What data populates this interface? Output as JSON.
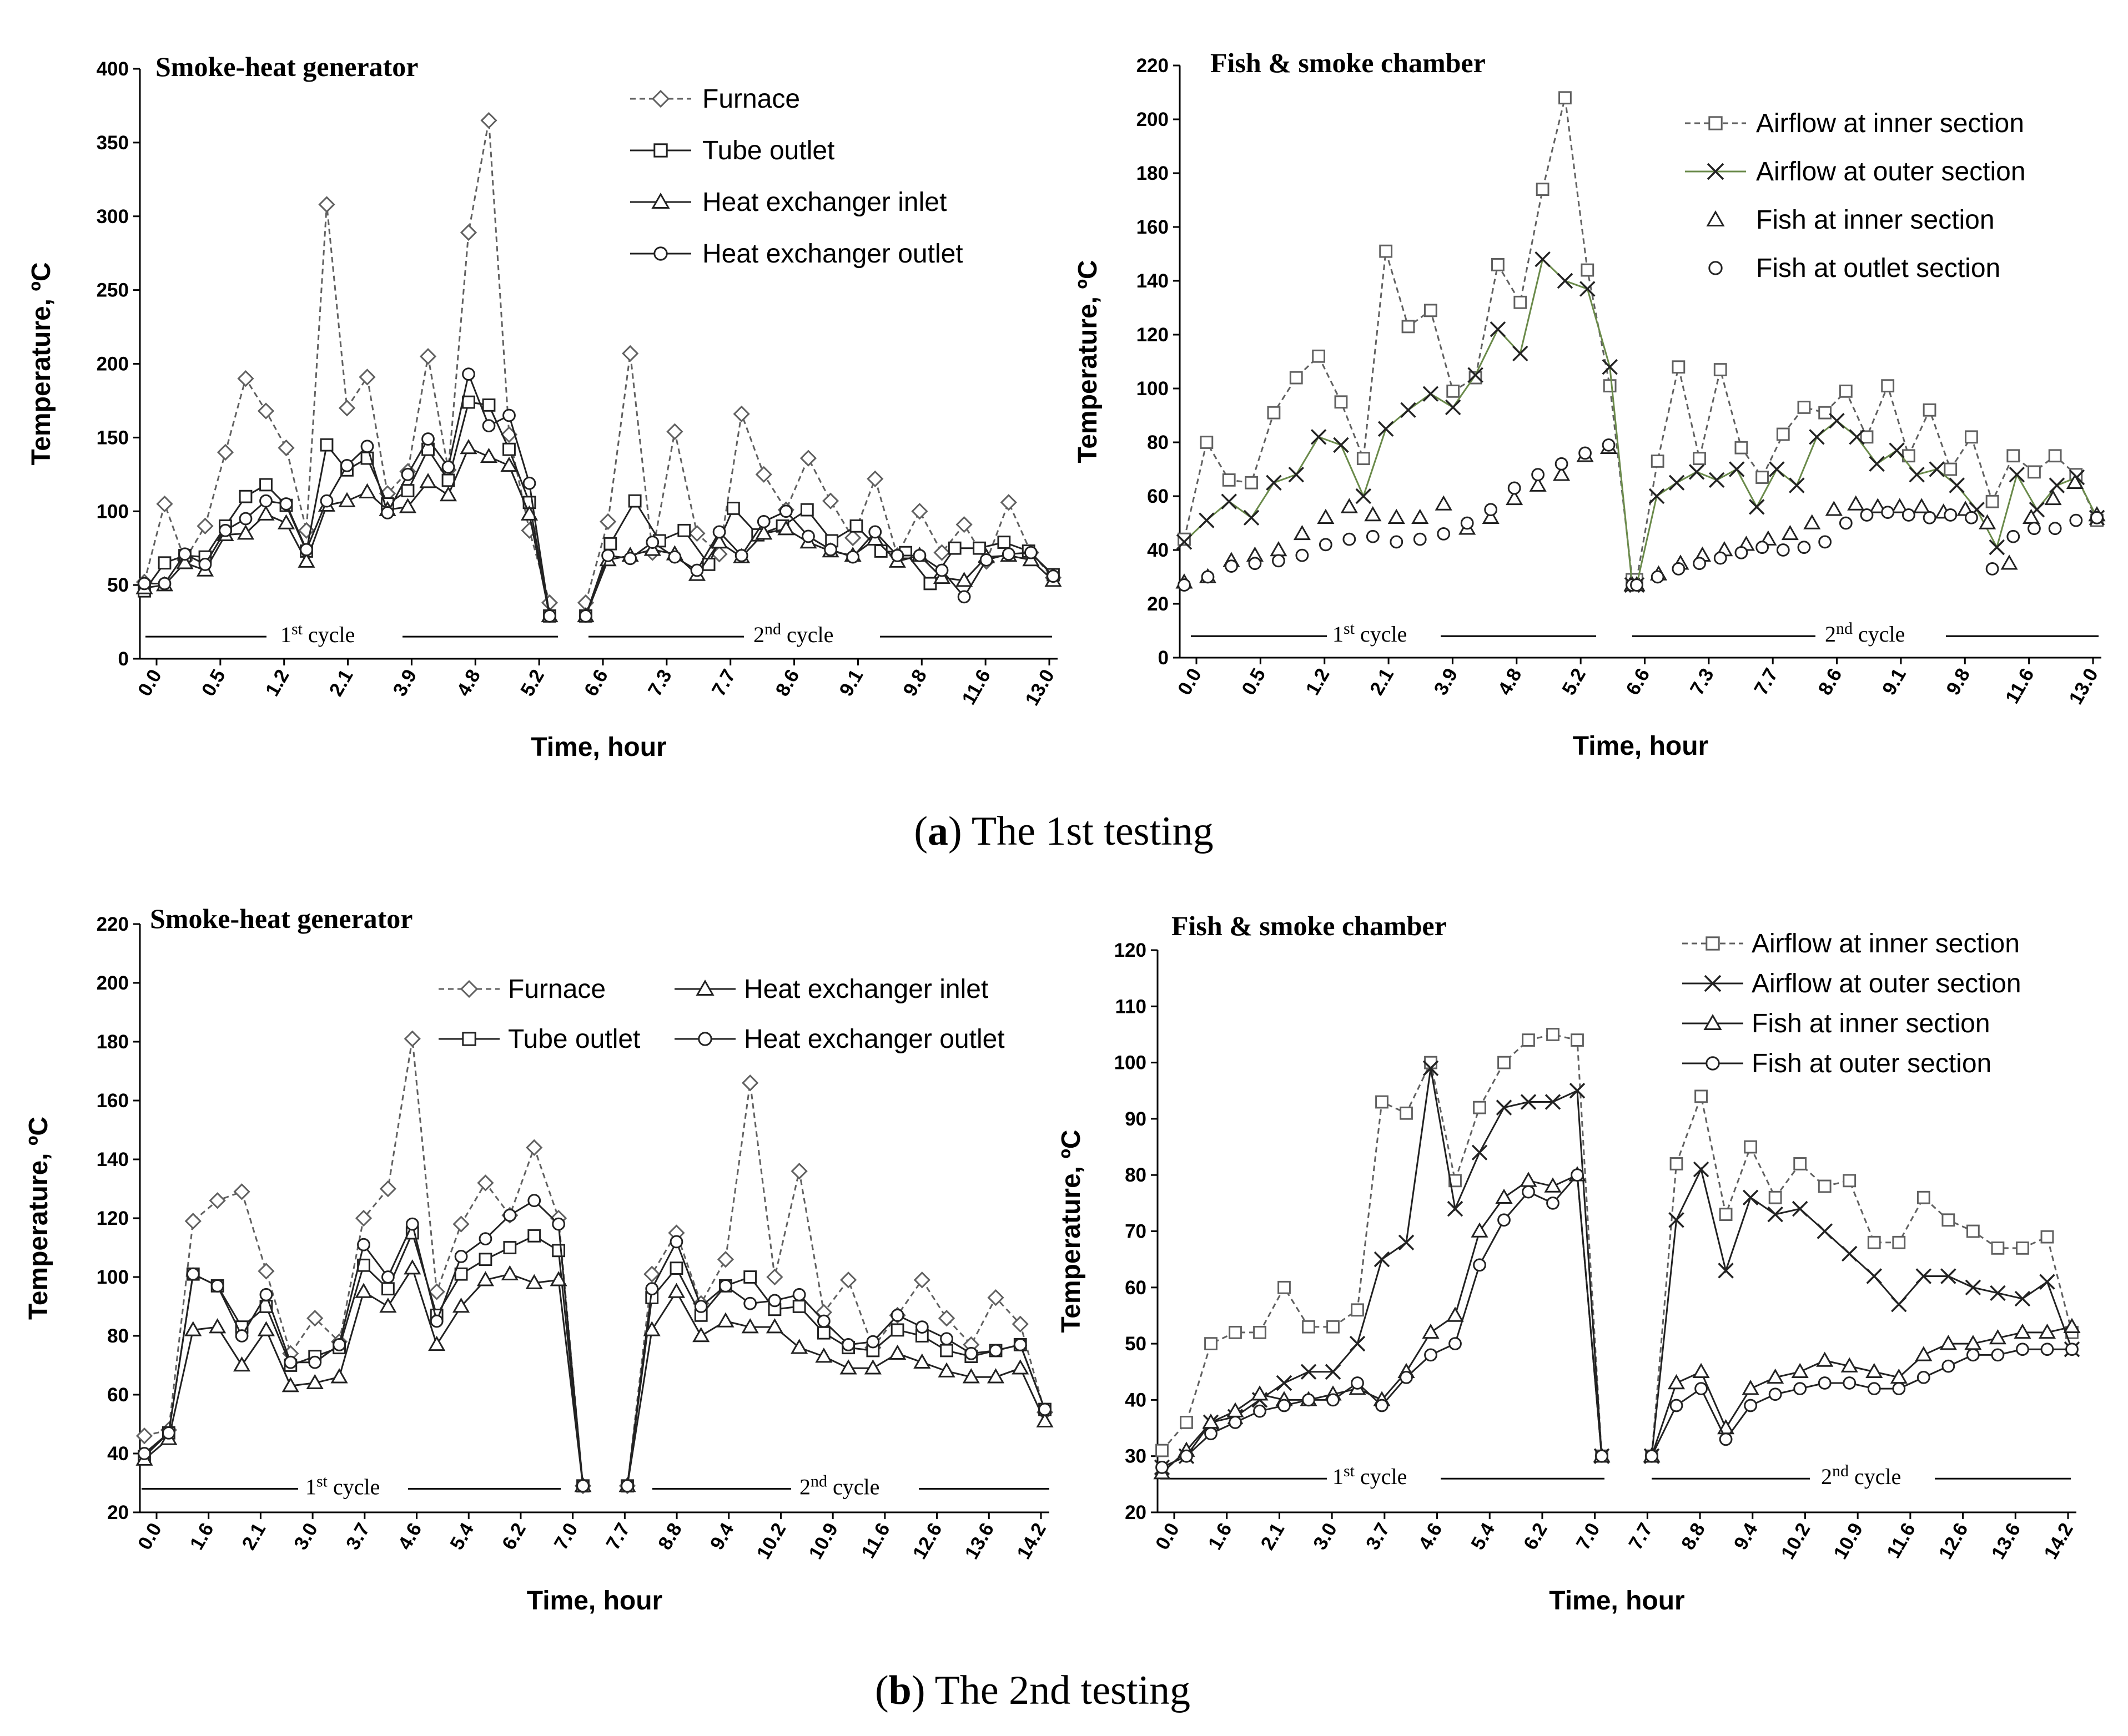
{
  "captions": [
    {
      "letter": "a",
      "open": "(",
      "close": ")",
      "text": " The 1st testing"
    },
    {
      "letter": "b",
      "open": "(",
      "close": ")",
      "text": " The 2nd testing"
    }
  ],
  "colors": {
    "marker": "#606060",
    "line": "#222222",
    "green": "#6a8a4a",
    "axis": "#000000"
  },
  "chart_data": [
    {
      "type": "line",
      "id": "a-left",
      "title": "Smoke-heat generator",
      "xlabel": "Time, hour",
      "ylabel": "Temperature, ºC",
      "ylim": [
        0,
        400
      ],
      "ytick_step": 50,
      "n_points": 54,
      "x_tick_labels": [
        "0.0",
        "0.5",
        "1.2",
        "2.1",
        "3.9",
        "4.8",
        "5.2",
        "6.6",
        "7.3",
        "7.7",
        "8.6",
        "9.1",
        "9.8",
        "11.6",
        "13.0"
      ],
      "x_tick_index": [
        0,
        2,
        4,
        6,
        8,
        10,
        12,
        14,
        16,
        18,
        20,
        22,
        24,
        26,
        28
      ],
      "cycles": [
        {
          "label": "1",
          "sup": "st",
          "suffix": " cycle"
        },
        {
          "label": "2",
          "sup": "nd",
          "suffix": " cycle"
        }
      ],
      "cycle_y": 15,
      "series": [
        {
          "name": "Furnace",
          "marker": "diamond",
          "dash": true,
          "segments": [
            [
              52,
              105,
              67,
              90,
              140,
              190,
              168,
              143,
              87,
              308,
              170,
              191,
              112,
              127,
              205,
              128,
              289,
              365,
              152,
              87,
              38
            ],
            [
              38,
              93,
              207,
              72,
              154,
              85,
              71,
              166,
              125,
              101,
              136,
              107,
              82,
              122,
              70,
              100,
              72,
              91,
              66,
              106,
              72,
              55
            ]
          ]
        },
        {
          "name": "Tube outlet",
          "marker": "square",
          "dash": false,
          "segments": [
            [
              46,
              65,
              70,
              69,
              90,
              110,
              118,
              104,
              73,
              145,
              128,
              136,
              105,
              114,
              142,
              121,
              174,
              172,
              142,
              106,
              29
            ],
            [
              29,
              78,
              107,
              80,
              87,
              64,
              102,
              84,
              90,
              101,
              80,
              90,
              73,
              72,
              51,
              75,
              75,
              79,
              73,
              57
            ]
          ]
        },
        {
          "name": "Heat exchanger inlet",
          "marker": "triangle",
          "dash": false,
          "segments": [
            [
              48,
              50,
              65,
              60,
              84,
              85,
              98,
              92,
              66,
              104,
              107,
              113,
              101,
              103,
              120,
              111,
              143,
              137,
              131,
              98,
              29
            ],
            [
              29,
              67,
              70,
              74,
              71,
              57,
              79,
              69,
              85,
              88,
              79,
              73,
              70,
              81,
              66,
              70,
              55,
              53,
              69,
              70,
              67,
              53
            ]
          ]
        },
        {
          "name": "Heat exchanger outlet",
          "marker": "circle",
          "dash": false,
          "segments": [
            [
              51,
              51,
              71,
              64,
              87,
              95,
              107,
              105,
              74,
              107,
              131,
              144,
              99,
              125,
              149,
              130,
              193,
              158,
              165,
              119,
              29
            ],
            [
              29,
              70,
              68,
              79,
              69,
              60,
              86,
              70,
              93,
              100,
              83,
              74,
              69,
              86,
              70,
              70,
              60,
              42,
              67,
              71,
              72,
              56
            ]
          ]
        }
      ]
    },
    {
      "type": "line",
      "id": "a-right",
      "title": "Fish & smoke chamber",
      "xlabel": "Time,  hour",
      "ylabel": "Temperature, ºC",
      "ylim": [
        0,
        220
      ],
      "ytick_step": 20,
      "n_points": 66,
      "x_tick_labels": [
        "0.0",
        "0.5",
        "1.2",
        "2.1",
        "3.9",
        "4.8",
        "5.2",
        "6.6",
        "7.3",
        "7.7",
        "8.6",
        "9.1",
        "9.8",
        "11.6",
        "13.0"
      ],
      "x_tick_index": [
        0,
        3,
        6,
        9,
        12,
        15,
        18,
        23,
        26,
        29,
        32,
        35,
        38,
        41,
        44
      ],
      "cycles": [
        {
          "label": "1",
          "sup": "st",
          "suffix": " cycle"
        },
        {
          "label": "2",
          "sup": "nd",
          "suffix": " cycle"
        }
      ],
      "cycle_y": 8,
      "series": [
        {
          "name": "Airflow at inner section",
          "marker": "square",
          "dash": true,
          "segments": [
            [
              44,
              80,
              66,
              65,
              91,
              104,
              112,
              95,
              74,
              151,
              123,
              129,
              99,
              104,
              146,
              132,
              174,
              208,
              144,
              101,
              29
            ],
            [
              29,
              73,
              108,
              74,
              107,
              78,
              67,
              83,
              93,
              91,
              99,
              82,
              101,
              75,
              92,
              70,
              82,
              58,
              75,
              69,
              75,
              68,
              51
            ]
          ]
        },
        {
          "name": "Airflow at outer section",
          "marker": "cross",
          "dash": false,
          "color": "green",
          "segments": [
            [
              43,
              51,
              58,
              52,
              65,
              68,
              82,
              79,
              60,
              85,
              92,
              98,
              93,
              105,
              122,
              113,
              148,
              140,
              137,
              108,
              27
            ],
            [
              27,
              60,
              65,
              69,
              66,
              70,
              56,
              70,
              64,
              82,
              88,
              82,
              72,
              77,
              68,
              70,
              64,
              55,
              41,
              68,
              55,
              64,
              67,
              52
            ]
          ]
        },
        {
          "name": "Fish at inner section",
          "marker": "triangle",
          "dash": false,
          "show_line": false,
          "segments": [
            [
              28,
              30,
              36,
              38,
              40,
              46,
              52,
              56,
              53,
              52,
              52,
              57,
              48,
              52,
              59,
              64,
              68,
              75,
              78,
              27
            ],
            [
              27,
              31,
              35,
              38,
              40,
              42,
              44,
              46,
              50,
              55,
              57,
              56,
              56,
              56,
              54,
              55,
              50,
              35,
              52,
              59,
              65,
              53
            ]
          ]
        },
        {
          "name": "Fish at outlet section",
          "marker": "circle",
          "dash": false,
          "show_line": false,
          "segments": [
            [
              27,
              30,
              34,
              35,
              36,
              38,
              42,
              44,
              45,
              43,
              44,
              46,
              50,
              55,
              63,
              68,
              72,
              76,
              79,
              27
            ],
            [
              27,
              30,
              33,
              35,
              37,
              39,
              41,
              40,
              41,
              43,
              50,
              53,
              54,
              53,
              52,
              53,
              52,
              33,
              45,
              48,
              48,
              51,
              52
            ]
          ]
        }
      ]
    },
    {
      "type": "line",
      "id": "b-left",
      "title": "Smoke-heat generator",
      "xlabel": "Time, hour",
      "ylabel": "Temperature, ºC",
      "ylim": [
        20,
        220
      ],
      "ytick_step": 20,
      "n_points": 42,
      "x_tick_labels": [
        "0.0",
        "1.6",
        "2.1",
        "3.0",
        "3.7",
        "4.6",
        "5.4",
        "6.2",
        "7.0",
        "7.7",
        "8.8",
        "9.4",
        "10.2",
        "10.9",
        "11.6",
        "12.6",
        "13.6",
        "14.2"
      ],
      "x_tick_index": [
        0,
        2,
        4,
        6,
        8,
        10,
        12,
        14,
        16,
        18,
        21,
        23,
        25,
        27,
        29,
        31,
        33,
        35
      ],
      "cycles": [
        {
          "label": "1",
          "sup": "st",
          "suffix": " cycle"
        },
        {
          "label": "2",
          "sup": "nd",
          "suffix": " cycle"
        }
      ],
      "cycle_y": 28,
      "series": [
        {
          "name": "Furnace",
          "marker": "diamond",
          "dash": true,
          "segments": [
            [
              46,
              48,
              119,
              126,
              129,
              102,
              74,
              86,
              78,
              120,
              130,
              181,
              95,
              118,
              132,
              121,
              144,
              120,
              29
            ],
            [
              29,
              101,
              115,
              91,
              106,
              166,
              100,
              136,
              88,
              99,
              76,
              87,
              99,
              86,
              77,
              93,
              84,
              54
            ]
          ]
        },
        {
          "name": "Tube outlet",
          "marker": "square",
          "dash": false,
          "segments": [
            [
              39,
              47,
              101,
              97,
              83,
              90,
              70,
              73,
              76,
              104,
              96,
              115,
              87,
              101,
              106,
              110,
              114,
              109,
              29
            ],
            [
              29,
              93,
              103,
              87,
              97,
              100,
              89,
              90,
              81,
              76,
              75,
              82,
              80,
              75,
              73,
              75,
              77,
              55
            ]
          ]
        },
        {
          "name": "Heat exchanger inlet",
          "marker": "triangle",
          "dash": false,
          "segments": [
            [
              38,
              45,
              82,
              83,
              70,
              82,
              63,
              64,
              66,
              95,
              90,
              103,
              77,
              90,
              99,
              101,
              98,
              99,
              29
            ],
            [
              29,
              82,
              95,
              80,
              85,
              83,
              83,
              76,
              73,
              69,
              69,
              74,
              71,
              68,
              66,
              66,
              69,
              51
            ]
          ]
        },
        {
          "name": "Heat exchanger outlet",
          "marker": "circle",
          "dash": false,
          "segments": [
            [
              40,
              47,
              101,
              97,
              80,
              94,
              71,
              71,
              77,
              111,
              100,
              118,
              85,
              107,
              113,
              121,
              126,
              118,
              29
            ],
            [
              29,
              96,
              112,
              90,
              97,
              91,
              92,
              94,
              85,
              77,
              78,
              87,
              83,
              79,
              74,
              75,
              77,
              55
            ]
          ]
        }
      ]
    },
    {
      "type": "line",
      "id": "b-right",
      "title": "Fish & smoke chamber",
      "xlabel": "Time, hour",
      "ylabel": "Temperature, ºC",
      "ylim": [
        20,
        120
      ],
      "ytick_step": 10,
      "n_points": 47,
      "x_tick_labels": [
        "0.0",
        "1.6",
        "2.1",
        "3.0",
        "3.7",
        "4.6",
        "5.4",
        "6.2",
        "7.0",
        "7.7",
        "8.8",
        "9.4",
        "10.2",
        "10.9",
        "11.6",
        "12.6",
        "13.6",
        "14.2"
      ],
      "x_tick_index": [
        0,
        2,
        4,
        6,
        8,
        10,
        12,
        14,
        16,
        18,
        21,
        23,
        25,
        27,
        29,
        31,
        33,
        35
      ],
      "cycles": [
        {
          "label": "1",
          "sup": "st",
          "suffix": " cycle"
        },
        {
          "label": "2",
          "sup": "nd",
          "suffix": " cycle"
        }
      ],
      "cycle_y": 26,
      "series": [
        {
          "name": "Airflow at inner section",
          "marker": "square",
          "dash": true,
          "segments": [
            [
              31,
              36,
              50,
              52,
              52,
              60,
              53,
              53,
              56,
              93,
              91,
              100,
              79,
              92,
              100,
              104,
              105,
              104,
              30
            ],
            [
              30,
              82,
              94,
              73,
              85,
              76,
              82,
              78,
              79,
              68,
              68,
              76,
              72,
              70,
              67,
              67,
              69,
              52
            ]
          ]
        },
        {
          "name": "Airflow at outer section",
          "marker": "cross",
          "dash": false,
          "segments": [
            [
              28,
              30,
              36,
              37,
              40,
              43,
              45,
              45,
              50,
              65,
              68,
              99,
              74,
              84,
              92,
              93,
              93,
              95,
              30
            ],
            [
              30,
              72,
              81,
              63,
              76,
              73,
              74,
              70,
              66,
              62,
              57,
              62,
              62,
              60,
              59,
              58,
              61,
              49
            ]
          ]
        },
        {
          "name": "Fish at inner section",
          "marker": "triangle",
          "dash": false,
          "segments": [
            [
              27,
              31,
              36,
              38,
              41,
              40,
              40,
              41,
              42,
              40,
              45,
              52,
              55,
              70,
              76,
              79,
              78,
              80,
              30
            ],
            [
              30,
              43,
              45,
              35,
              42,
              44,
              45,
              47,
              46,
              45,
              44,
              48,
              50,
              50,
              51,
              52,
              52,
              53
            ]
          ]
        },
        {
          "name": "Fish at outer section",
          "marker": "circle",
          "dash": false,
          "segments": [
            [
              28,
              30,
              34,
              36,
              38,
              39,
              40,
              40,
              43,
              39,
              44,
              48,
              50,
              64,
              72,
              77,
              75,
              80,
              30
            ],
            [
              30,
              39,
              42,
              33,
              39,
              41,
              42,
              43,
              43,
              42,
              42,
              44,
              46,
              48,
              48,
              49,
              49,
              49
            ]
          ]
        }
      ]
    }
  ]
}
